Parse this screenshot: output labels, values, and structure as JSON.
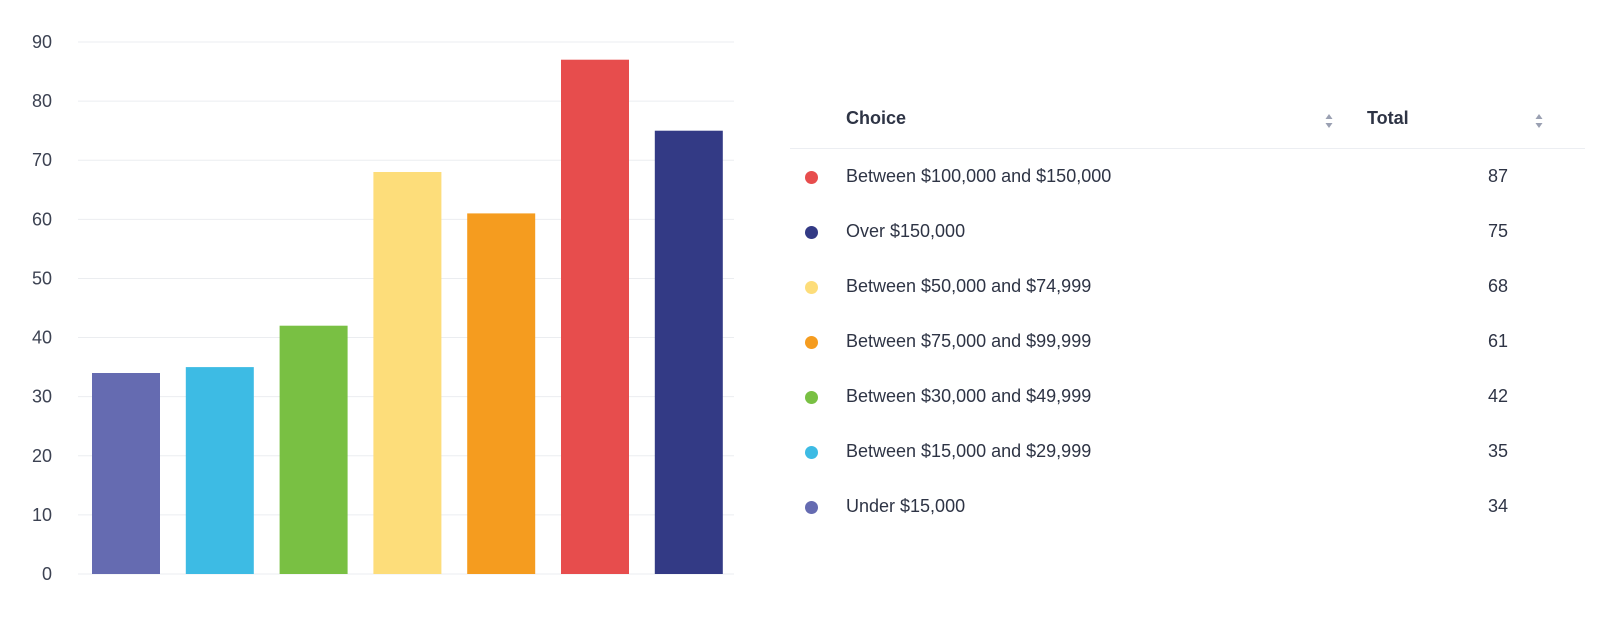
{
  "chart_data": {
    "type": "bar",
    "categories": [
      "Under $15,000",
      "Between $15,000 and $29,999",
      "Between $30,000 and $49,999",
      "Between $50,000 and $74,999",
      "Between $75,000 and $99,999",
      "Between $100,000 and $150,000",
      "Over $150,000"
    ],
    "values": [
      34,
      35,
      42,
      68,
      61,
      87,
      75
    ],
    "colors": [
      "#656bb1",
      "#3dbbe4",
      "#79c043",
      "#fddd7a",
      "#f59c1f",
      "#e74d4d",
      "#333a85"
    ],
    "ylim": [
      0,
      90
    ],
    "yticks": [
      "0",
      "10",
      "20",
      "30",
      "40",
      "50",
      "60",
      "70",
      "80",
      "90"
    ],
    "grid": true,
    "gridline_color": "#ebedf0"
  },
  "table": {
    "headers": {
      "choice": "Choice",
      "total": "Total"
    },
    "sort_icon": "sort-updown-icon",
    "rows": [
      {
        "label": "Between $100,000 and $150,000",
        "total": "87",
        "color": "#e74d4d"
      },
      {
        "label": "Over $150,000",
        "total": "75",
        "color": "#333a85"
      },
      {
        "label": "Between $50,000 and $74,999",
        "total": "68",
        "color": "#fddd7a"
      },
      {
        "label": "Between $75,000 and $99,999",
        "total": "61",
        "color": "#f59c1f"
      },
      {
        "label": "Between $30,000 and $49,999",
        "total": "42",
        "color": "#79c043"
      },
      {
        "label": "Between $15,000 and $29,999",
        "total": "35",
        "color": "#3dbbe4"
      },
      {
        "label": "Under $15,000",
        "total": "34",
        "color": "#656bb1"
      }
    ]
  }
}
